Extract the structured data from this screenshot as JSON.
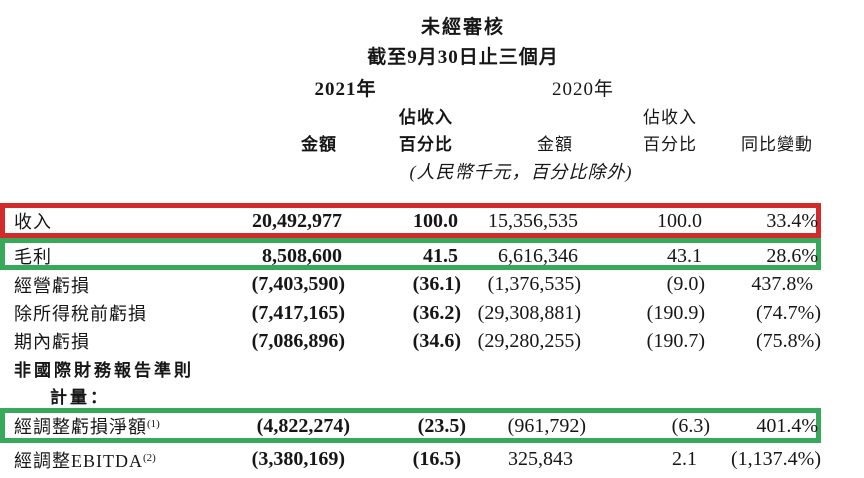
{
  "header": {
    "title": "未經審核",
    "subtitle": "截至9月30日止三個月",
    "year_2021": "2021年",
    "year_2020": "2020年",
    "share_2021_line1": "佔收入",
    "share_2020_line1": "佔收入",
    "col_amount_2021": "金額",
    "col_pct_2021": "百分比",
    "col_amount_2020": "金額",
    "col_pct_2020": "百分比",
    "col_yoy": "同比變動",
    "unit_note": "(人民幣千元，百分比除外)"
  },
  "colors": {
    "red_box": "#d32b2b",
    "green_box": "#38a85a"
  },
  "table": {
    "columns": [
      "金額 2021",
      "佔收入百分比 2021",
      "金額 2020",
      "佔收入百分比 2020",
      "同比變動"
    ],
    "rows": [
      {
        "label": "收入",
        "cells": [
          "20,492,977",
          "100.0",
          "15,356,535",
          "100.0",
          "33.4%"
        ],
        "highlight": "red"
      },
      {
        "label": "毛利",
        "cells": [
          "8,508,600",
          "41.5",
          "6,616,346",
          "43.1",
          "28.6%"
        ],
        "highlight": "green"
      },
      {
        "label": "經營虧損",
        "cells": [
          "(7,403,590)",
          "(36.1)",
          "(1,376,535)",
          "(9.0)",
          "437.8%"
        ]
      },
      {
        "label": "除所得稅前虧損",
        "cells": [
          "(7,417,165)",
          "(36.2)",
          "(29,308,881)",
          "(190.9)",
          "(74.7%)"
        ]
      },
      {
        "label": "期內虧損",
        "cells": [
          "(7,086,896)",
          "(34.6)",
          "(29,280,255)",
          "(190.7)",
          "(75.8%)"
        ]
      },
      {
        "label": "非國際財務報告準則",
        "section": true,
        "cells": []
      },
      {
        "label": "計量：",
        "section": true,
        "indent": true,
        "cells": []
      },
      {
        "label": "經調整虧損淨額",
        "sup": "(1)",
        "cells": [
          "(4,822,274)",
          "(23.5)",
          "(961,792)",
          "(6.3)",
          "401.4%"
        ],
        "highlight": "green"
      },
      {
        "label": "經調整EBITDA",
        "sup": "(2)",
        "cells": [
          "(3,380,169)",
          "(16.5)",
          "325,843",
          "2.1",
          "(1,137.4%)"
        ]
      }
    ]
  }
}
